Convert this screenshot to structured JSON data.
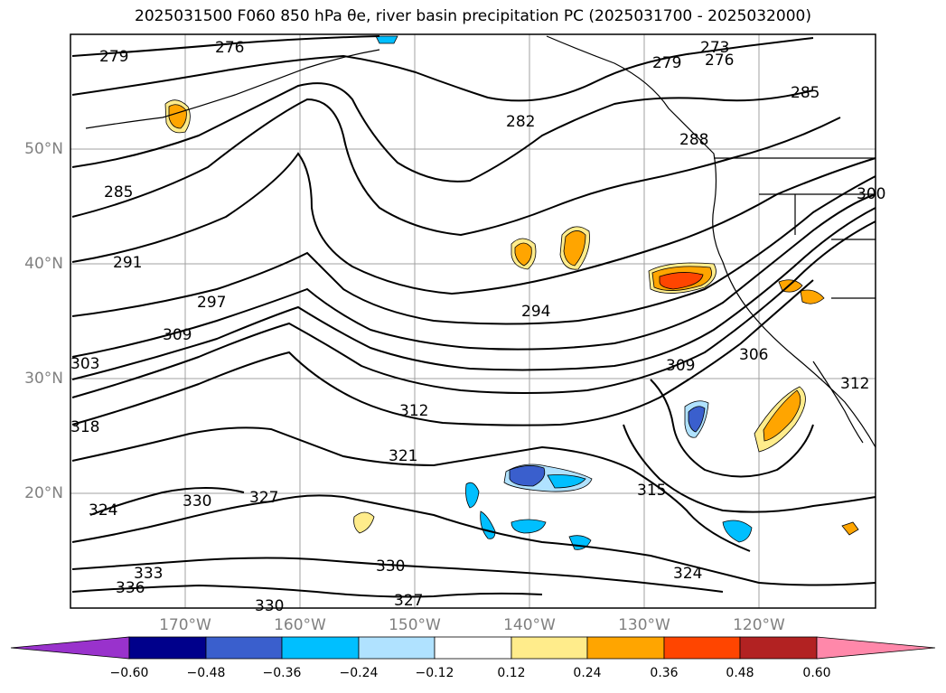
{
  "title": "2025031500 F060 850 hPa θe, river basin precipitation PC (2025031700 - 2025032000)",
  "map": {
    "lat_labels": [
      "50°N",
      "40°N",
      "30°N",
      "20°N"
    ],
    "lon_labels": [
      "170°W",
      "160°W",
      "150°W",
      "140°W",
      "130°W",
      "120°W"
    ],
    "gridlines": true,
    "contour_labels": [
      "279",
      "276",
      "273",
      "276",
      "279",
      "285",
      "282",
      "288",
      "285",
      "291",
      "297",
      "294",
      "300",
      "309",
      "303",
      "318",
      "309",
      "306",
      "312",
      "312",
      "321",
      "324",
      "330",
      "327",
      "315",
      "330",
      "333",
      "336",
      "330",
      "327",
      "324"
    ]
  },
  "colorbar": {
    "ticks": [
      "−0.60",
      "−0.48",
      "−0.36",
      "−0.24",
      "−0.12",
      "0.12",
      "0.24",
      "0.36",
      "0.48",
      "0.60"
    ],
    "colors": [
      "#9932CC",
      "#00008B",
      "#3A5FCD",
      "#00BFFF",
      "#B0E2FF",
      "#FFFFFF",
      "#FFEC8B",
      "#FFA500",
      "#FF4500",
      "#B22222",
      "#FF88AA"
    ]
  }
}
